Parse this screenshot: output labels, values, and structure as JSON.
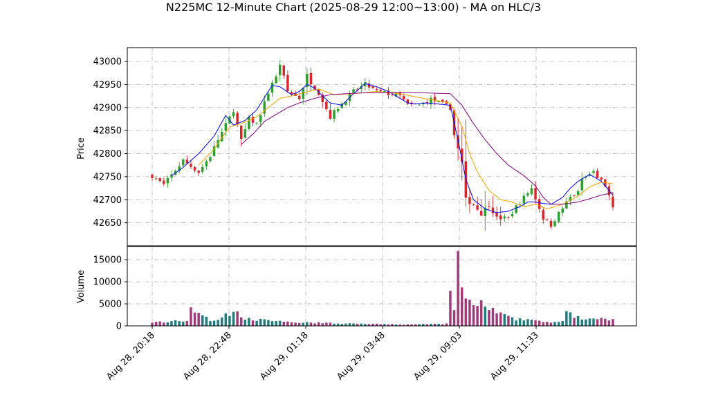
{
  "chart_data": {
    "type": "candlestick",
    "title": "N225MC 12-Minute Chart (2025-08-29 12:00~13:00) - MA on HLC/3",
    "price_panel": {
      "ylabel": "Price",
      "ylim": [
        42600,
        43030
      ],
      "yticks": [
        42650,
        42700,
        42750,
        42800,
        42850,
        42900,
        42950,
        43000
      ],
      "grid": true
    },
    "volume_panel": {
      "ylabel": "Volume",
      "ylim": [
        0,
        18000
      ],
      "yticks": [
        0,
        5000,
        10000,
        15000
      ],
      "grid": true
    },
    "xticks": [
      "Aug 28, 20:18",
      "Aug 28, 22:48",
      "Aug 29, 01:18",
      "Aug 29, 03:48",
      "Aug 29, 09:03",
      "Aug 29, 11:33"
    ],
    "candle_count": 120,
    "up_color": "#2ca02c",
    "down_color": "#d62728",
    "volume_up_color": "#1f7a7a",
    "volume_down_color": "#a0397a",
    "close_path": [
      [
        0,
        42752
      ],
      [
        3,
        42732
      ],
      [
        8,
        42785
      ],
      [
        12,
        42760
      ],
      [
        15,
        42795
      ],
      [
        17,
        42830
      ],
      [
        20,
        42878
      ],
      [
        21,
        42895
      ],
      [
        23,
        42828
      ],
      [
        25,
        42875
      ],
      [
        27,
        42865
      ],
      [
        29,
        42910
      ],
      [
        31,
        42955
      ],
      [
        32,
        42965
      ],
      [
        33,
        42995
      ],
      [
        35,
        42935
      ],
      [
        38,
        42920
      ],
      [
        39,
        42945
      ],
      [
        40,
        42970
      ],
      [
        41,
        42955
      ],
      [
        43,
        42932
      ],
      [
        46,
        42880
      ],
      [
        48,
        42900
      ],
      [
        52,
        42935
      ],
      [
        55,
        42950
      ],
      [
        58,
        42935
      ],
      [
        61,
        42930
      ],
      [
        64,
        42925
      ],
      [
        66,
        42905
      ],
      [
        69,
        42905
      ],
      [
        72,
        42918
      ],
      [
        77,
        42900
      ],
      [
        78,
        42840
      ],
      [
        80,
        42780
      ],
      [
        81,
        42700
      ],
      [
        83,
        42690
      ],
      [
        85,
        42670
      ],
      [
        87,
        42690
      ],
      [
        89,
        42660
      ],
      [
        92,
        42660
      ],
      [
        94,
        42685
      ],
      [
        96,
        42705
      ],
      [
        98,
        42725
      ],
      [
        101,
        42660
      ],
      [
        103,
        42645
      ],
      [
        105,
        42670
      ],
      [
        108,
        42705
      ],
      [
        110,
        42715
      ],
      [
        111,
        42745
      ],
      [
        112,
        42750
      ],
      [
        114,
        42760
      ],
      [
        116,
        42740
      ],
      [
        118,
        42710
      ],
      [
        119,
        42680
      ]
    ],
    "volume_path": [
      [
        0,
        600
      ],
      [
        5,
        800
      ],
      [
        9,
        1000
      ],
      [
        10,
        3000
      ],
      [
        15,
        900
      ],
      [
        18,
        1500
      ],
      [
        20,
        2200
      ],
      [
        21,
        2800
      ],
      [
        23,
        1500
      ],
      [
        27,
        1100
      ],
      [
        31,
        800
      ],
      [
        36,
        600
      ],
      [
        45,
        500
      ],
      [
        55,
        350
      ],
      [
        66,
        250
      ],
      [
        70,
        300
      ],
      [
        76,
        350
      ],
      [
        77,
        6500
      ],
      [
        78,
        3500
      ],
      [
        79,
        17000
      ],
      [
        80,
        7000
      ],
      [
        81,
        5000
      ],
      [
        84,
        4200
      ],
      [
        87,
        3200
      ],
      [
        90,
        2000
      ],
      [
        94,
        1200
      ],
      [
        98,
        1000
      ],
      [
        103,
        700
      ],
      [
        106,
        800
      ],
      [
        107,
        2200
      ],
      [
        109,
        1800
      ],
      [
        111,
        1300
      ],
      [
        114,
        1100
      ],
      [
        118,
        1200
      ],
      [
        119,
        1300
      ]
    ],
    "series": [
      {
        "color": "#0000ff",
        "path": [
          [
            5,
            42752
          ],
          [
            8,
            42770
          ],
          [
            12,
            42800
          ],
          [
            16,
            42838
          ],
          [
            19,
            42883
          ],
          [
            21,
            42862
          ],
          [
            24,
            42872
          ],
          [
            27,
            42895
          ],
          [
            29,
            42922
          ],
          [
            31,
            42948
          ],
          [
            33,
            42945
          ],
          [
            36,
            42928
          ],
          [
            38,
            42935
          ],
          [
            40,
            42950
          ],
          [
            42,
            42942
          ],
          [
            44,
            42925
          ],
          [
            46,
            42910
          ],
          [
            49,
            42905
          ],
          [
            52,
            42930
          ],
          [
            55,
            42952
          ],
          [
            58,
            42945
          ],
          [
            61,
            42935
          ],
          [
            64,
            42920
          ],
          [
            66,
            42910
          ],
          [
            68,
            42908
          ],
          [
            71,
            42910
          ],
          [
            77,
            42905
          ],
          [
            79,
            42830
          ],
          [
            81,
            42745
          ],
          [
            83,
            42700
          ],
          [
            86,
            42680
          ],
          [
            89,
            42672
          ],
          [
            92,
            42675
          ],
          [
            95,
            42685
          ],
          [
            97,
            42695
          ],
          [
            99,
            42695
          ],
          [
            101,
            42692
          ],
          [
            103,
            42690
          ],
          [
            106,
            42705
          ],
          [
            108,
            42725
          ],
          [
            110,
            42740
          ],
          [
            113,
            42755
          ],
          [
            116,
            42740
          ],
          [
            119,
            42710
          ]
        ]
      },
      {
        "color": "#ffa500",
        "path": [
          [
            12,
            42775
          ],
          [
            16,
            42810
          ],
          [
            20,
            42858
          ],
          [
            24,
            42868
          ],
          [
            27,
            42880
          ],
          [
            30,
            42900
          ],
          [
            33,
            42920
          ],
          [
            36,
            42925
          ],
          [
            39,
            42932
          ],
          [
            43,
            42940
          ],
          [
            47,
            42928
          ],
          [
            52,
            42930
          ],
          [
            58,
            42935
          ],
          [
            64,
            42930
          ],
          [
            70,
            42920
          ],
          [
            77,
            42910
          ],
          [
            80,
            42860
          ],
          [
            82,
            42800
          ],
          [
            84,
            42760
          ],
          [
            87,
            42720
          ],
          [
            90,
            42700
          ],
          [
            93,
            42695
          ],
          [
            96,
            42685
          ],
          [
            99,
            42690
          ],
          [
            102,
            42680
          ],
          [
            106,
            42690
          ],
          [
            110,
            42708
          ],
          [
            113,
            42728
          ],
          [
            116,
            42738
          ],
          [
            119,
            42735
          ]
        ]
      },
      {
        "color": "#800080",
        "path": [
          [
            23,
            42820
          ],
          [
            26,
            42842
          ],
          [
            29,
            42870
          ],
          [
            32,
            42885
          ],
          [
            35,
            42900
          ],
          [
            38,
            42910
          ],
          [
            42,
            42920
          ],
          [
            46,
            42928
          ],
          [
            50,
            42930
          ],
          [
            55,
            42932
          ],
          [
            60,
            42933
          ],
          [
            65,
            42933
          ],
          [
            70,
            42932
          ],
          [
            77,
            42930
          ],
          [
            80,
            42905
          ],
          [
            83,
            42865
          ],
          [
            86,
            42830
          ],
          [
            89,
            42800
          ],
          [
            92,
            42775
          ],
          [
            96,
            42752
          ],
          [
            99,
            42730
          ],
          [
            101,
            42705
          ],
          [
            103,
            42690
          ],
          [
            106,
            42690
          ],
          [
            110,
            42695
          ],
          [
            113,
            42702
          ],
          [
            116,
            42710
          ],
          [
            119,
            42715
          ]
        ]
      }
    ]
  }
}
